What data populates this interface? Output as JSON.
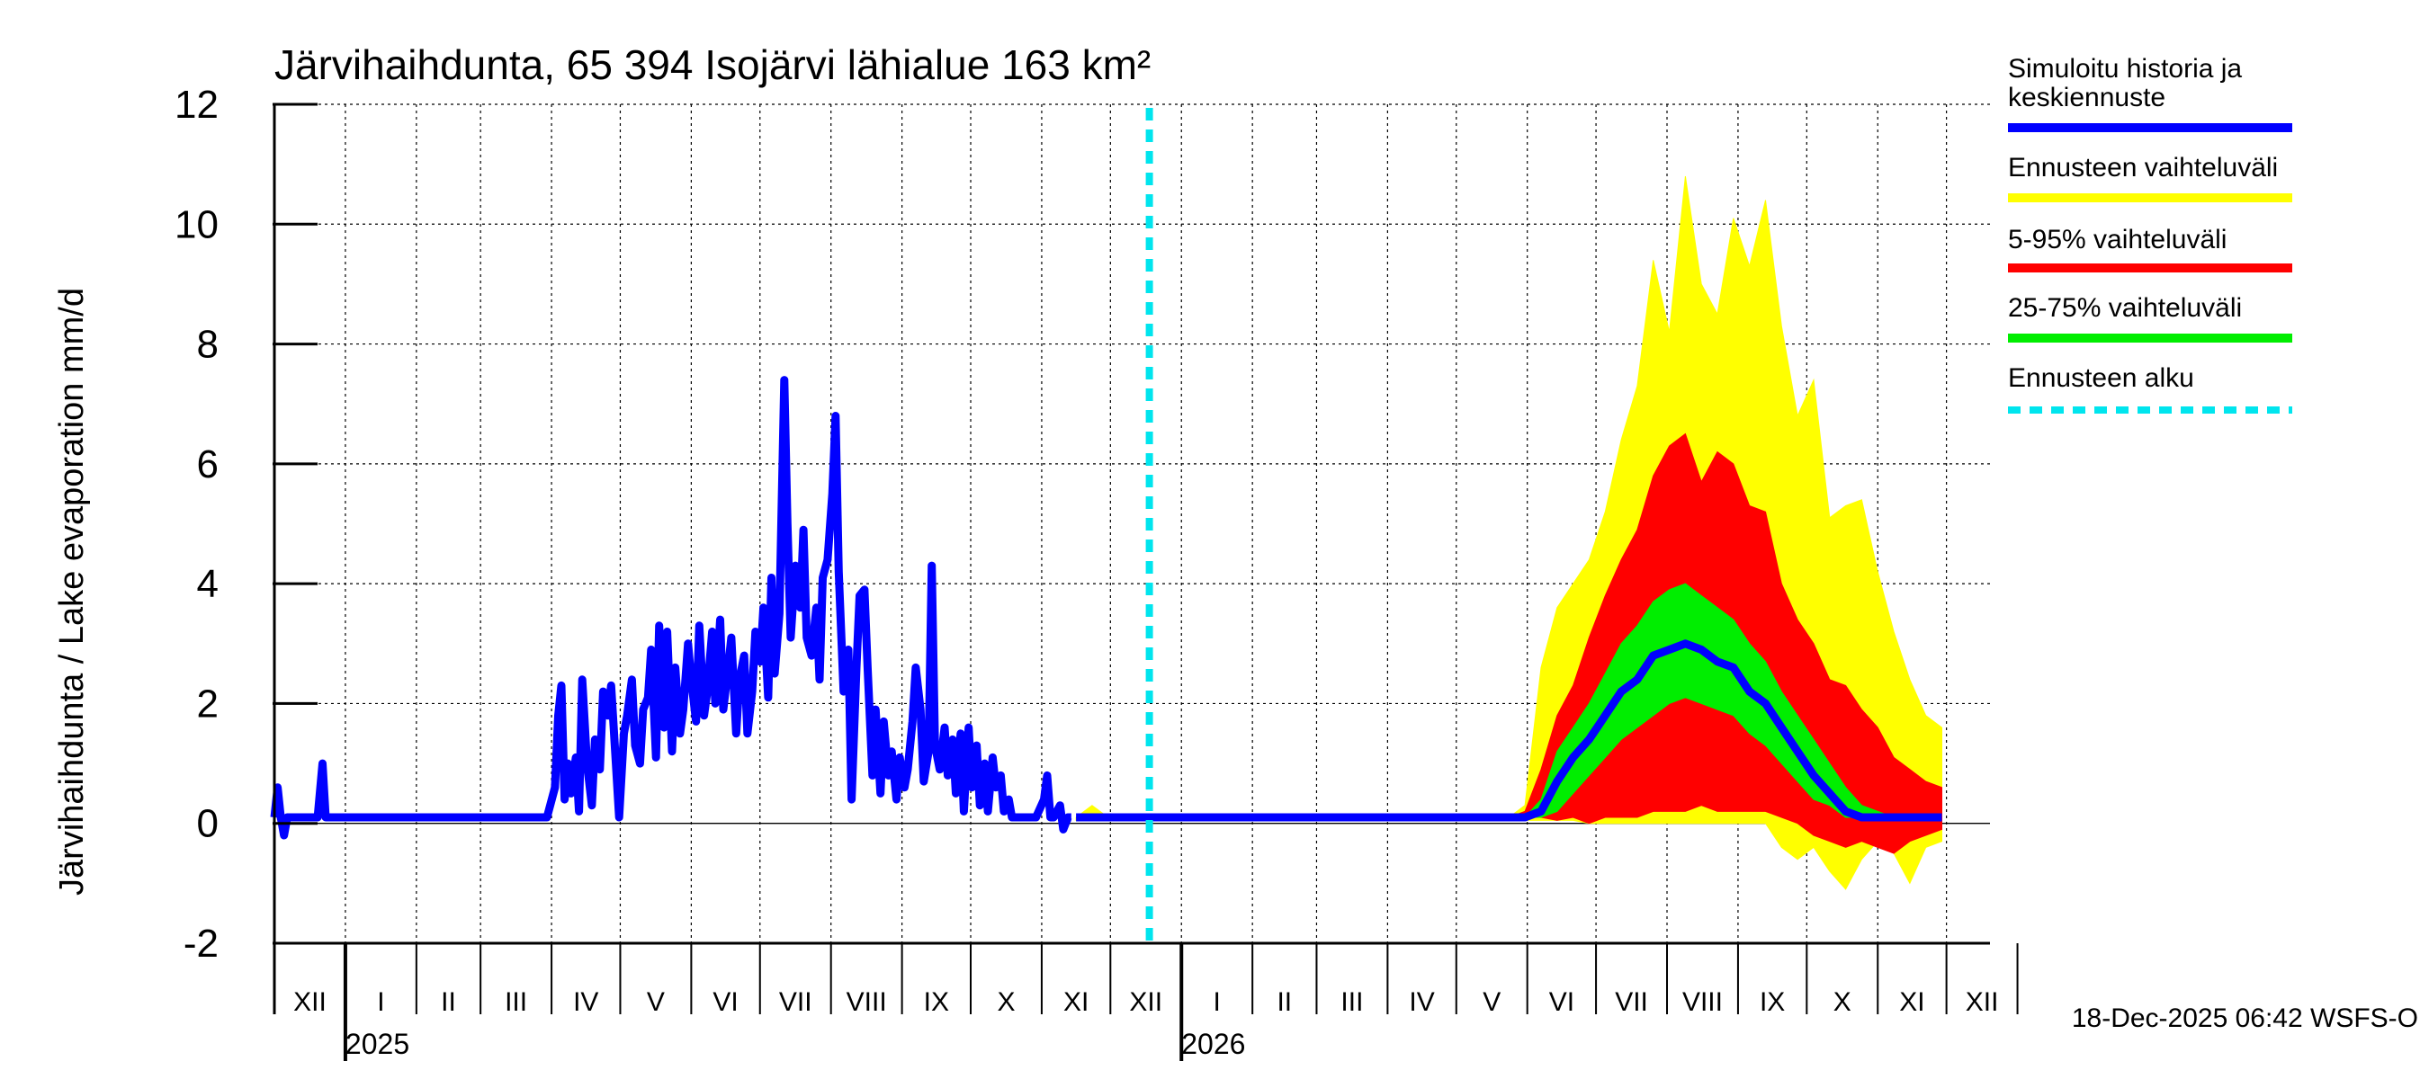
{
  "chart_data": {
    "type": "area",
    "title": "Järvihaihdunta, 65 394 Isojärvi lähialue 163 km²",
    "ylabel": "Järvihaihdunta / Lake evaporation   mm/d",
    "ylim": [
      -2,
      12
    ],
    "yticks": [
      -2,
      0,
      2,
      4,
      6,
      8,
      10,
      12
    ],
    "grid": true,
    "x_axis": {
      "start": "2024-12-01",
      "end": "2026-12-31",
      "month_labels": [
        "XII",
        "I",
        "II",
        "III",
        "IV",
        "V",
        "VI",
        "VII",
        "VIII",
        "IX",
        "X",
        "XI",
        "XII",
        "I",
        "II",
        "III",
        "IV",
        "V",
        "VI",
        "VII",
        "VIII",
        "IX",
        "X",
        "XI",
        "XII"
      ],
      "year_labels": [
        {
          "label": "2025",
          "month_index": 1
        },
        {
          "label": "2026",
          "month_index": 13
        }
      ]
    },
    "forecast_start": "2025-12-18",
    "legend": [
      {
        "label": "Simuloitu historia ja keskiennuste",
        "line1": "Simuloitu historia ja",
        "line2": "keskiennuste",
        "color": "#0000ff",
        "style": "solid"
      },
      {
        "label": "Ennusteen vaihteluväli",
        "color": "#ffff00",
        "style": "solid"
      },
      {
        "label": "5-95% vaihteluväli",
        "color": "#ff0000",
        "style": "solid"
      },
      {
        "label": "25-75% vaihteluväli",
        "color": "#00ee00",
        "style": "solid"
      },
      {
        "label": "Ennusteen alku",
        "color": "#00e5ee",
        "style": "dashed"
      }
    ],
    "history_series": {
      "name": "Simuloitu historia",
      "color": "#0000ff",
      "points": [
        [
          0.0,
          0.1
        ],
        [
          0.2,
          0.6
        ],
        [
          0.4,
          0.1
        ],
        [
          0.6,
          -0.2
        ],
        [
          0.8,
          0.1
        ],
        [
          1.0,
          0.1
        ],
        [
          2.0,
          0.1
        ],
        [
          2.7,
          0.1
        ],
        [
          3.0,
          1.0
        ],
        [
          3.2,
          0.1
        ],
        [
          3.5,
          0.1
        ],
        [
          4.5,
          0.1
        ],
        [
          5.5,
          0.1
        ],
        [
          6.5,
          0.1
        ],
        [
          7.5,
          0.1
        ],
        [
          8.5,
          0.1
        ],
        [
          9.5,
          0.1
        ],
        [
          10.5,
          0.1
        ],
        [
          11.5,
          0.1
        ],
        [
          12.0,
          0.1
        ],
        [
          13.0,
          0.1
        ],
        [
          14.0,
          0.1
        ],
        [
          15.0,
          0.1
        ],
        [
          16.0,
          0.1
        ],
        [
          17.0,
          0.1
        ],
        [
          17.5,
          0.6
        ],
        [
          17.7,
          1.8
        ],
        [
          17.9,
          2.3
        ],
        [
          18.1,
          0.4
        ],
        [
          18.3,
          1.0
        ],
        [
          18.5,
          0.5
        ],
        [
          18.8,
          1.1
        ],
        [
          19.0,
          0.2
        ],
        [
          19.2,
          2.4
        ],
        [
          19.5,
          1.0
        ],
        [
          19.8,
          0.3
        ],
        [
          20.0,
          1.4
        ],
        [
          20.3,
          0.9
        ],
        [
          20.5,
          2.2
        ],
        [
          20.8,
          1.8
        ],
        [
          21.0,
          2.3
        ],
        [
          21.3,
          1.0
        ],
        [
          21.5,
          0.1
        ],
        [
          21.8,
          1.5
        ],
        [
          22.0,
          1.8
        ],
        [
          22.3,
          2.4
        ],
        [
          22.5,
          1.3
        ],
        [
          22.8,
          1.0
        ],
        [
          23.0,
          1.9
        ],
        [
          23.3,
          2.1
        ],
        [
          23.5,
          2.9
        ],
        [
          23.8,
          1.1
        ],
        [
          24.0,
          3.3
        ],
        [
          24.3,
          1.6
        ],
        [
          24.5,
          3.2
        ],
        [
          24.8,
          1.2
        ],
        [
          25.0,
          2.6
        ],
        [
          25.3,
          1.5
        ],
        [
          25.5,
          1.9
        ],
        [
          25.8,
          3.0
        ],
        [
          26.0,
          2.4
        ],
        [
          26.3,
          1.7
        ],
        [
          26.5,
          3.3
        ],
        [
          26.8,
          1.8
        ],
        [
          27.0,
          2.2
        ],
        [
          27.3,
          3.2
        ],
        [
          27.5,
          2.0
        ],
        [
          27.8,
          3.4
        ],
        [
          28.0,
          1.9
        ],
        [
          28.3,
          2.6
        ],
        [
          28.5,
          3.1
        ],
        [
          28.8,
          1.5
        ],
        [
          29.0,
          2.4
        ],
        [
          29.3,
          2.8
        ],
        [
          29.5,
          1.5
        ],
        [
          29.8,
          2.2
        ],
        [
          30.0,
          3.2
        ],
        [
          30.3,
          2.7
        ],
        [
          30.5,
          3.6
        ],
        [
          30.8,
          2.1
        ],
        [
          31.0,
          4.1
        ],
        [
          31.2,
          2.5
        ],
        [
          31.5,
          3.5
        ],
        [
          31.8,
          7.4
        ],
        [
          32.0,
          5.0
        ],
        [
          32.2,
          3.1
        ],
        [
          32.5,
          4.3
        ],
        [
          32.8,
          3.6
        ],
        [
          33.0,
          4.9
        ],
        [
          33.2,
          3.1
        ],
        [
          33.5,
          2.8
        ],
        [
          33.8,
          3.6
        ],
        [
          34.0,
          2.4
        ],
        [
          34.2,
          4.1
        ],
        [
          34.5,
          4.4
        ],
        [
          34.8,
          5.5
        ],
        [
          35.0,
          6.8
        ],
        [
          35.2,
          4.2
        ],
        [
          35.5,
          2.2
        ],
        [
          35.8,
          2.9
        ],
        [
          36.0,
          0.4
        ],
        [
          36.3,
          2.6
        ],
        [
          36.5,
          3.8
        ],
        [
          36.8,
          3.9
        ],
        [
          37.0,
          2.6
        ],
        [
          37.3,
          0.8
        ],
        [
          37.5,
          1.9
        ],
        [
          37.8,
          0.5
        ],
        [
          38.0,
          1.7
        ],
        [
          38.3,
          0.8
        ],
        [
          38.5,
          1.2
        ],
        [
          38.8,
          0.4
        ],
        [
          39.0,
          1.1
        ],
        [
          39.3,
          0.6
        ],
        [
          39.5,
          0.9
        ],
        [
          39.8,
          1.7
        ],
        [
          40.0,
          2.6
        ],
        [
          40.3,
          1.9
        ],
        [
          40.5,
          0.7
        ],
        [
          40.8,
          1.2
        ],
        [
          41.0,
          4.3
        ],
        [
          41.2,
          1.3
        ],
        [
          41.5,
          0.9
        ],
        [
          41.8,
          1.6
        ],
        [
          42.0,
          0.8
        ],
        [
          42.3,
          1.4
        ],
        [
          42.5,
          0.5
        ],
        [
          42.8,
          1.5
        ],
        [
          43.0,
          0.2
        ],
        [
          43.3,
          1.6
        ],
        [
          43.5,
          0.6
        ],
        [
          43.8,
          1.3
        ],
        [
          44.0,
          0.3
        ],
        [
          44.3,
          1.0
        ],
        [
          44.5,
          0.2
        ],
        [
          44.8,
          1.1
        ],
        [
          45.0,
          0.6
        ],
        [
          45.3,
          0.8
        ],
        [
          45.5,
          0.2
        ],
        [
          45.8,
          0.4
        ],
        [
          46.0,
          0.1
        ],
        [
          46.5,
          0.1
        ],
        [
          47.0,
          0.1
        ],
        [
          47.5,
          0.1
        ],
        [
          48.0,
          0.4
        ],
        [
          48.2,
          0.8
        ],
        [
          48.4,
          0.1
        ],
        [
          48.6,
          0.1
        ],
        [
          49.0,
          0.3
        ],
        [
          49.2,
          -0.1
        ],
        [
          49.5,
          0.1
        ],
        [
          49.7,
          0.1
        ]
      ]
    },
    "forecast_band_min_max": {
      "name": "Ennusteen vaihteluväli",
      "color": "#ffff00",
      "x": [
        50,
        51,
        52,
        53,
        54,
        55,
        56,
        57,
        58,
        59,
        60,
        61,
        62,
        63,
        64,
        65,
        66,
        67,
        68,
        69,
        70,
        71,
        72,
        73,
        74,
        75,
        76,
        77,
        78,
        79,
        80,
        81,
        82,
        83,
        84,
        85,
        86,
        87,
        88,
        89,
        90,
        91,
        92,
        93,
        94,
        95,
        96,
        97,
        98,
        99,
        100,
        101,
        102,
        103,
        104
      ],
      "lower": [
        0.05,
        0.05,
        0.05,
        0.05,
        0.05,
        0.05,
        0.05,
        0.05,
        0.05,
        0.05,
        0.05,
        0.05,
        0.05,
        0.05,
        0.05,
        0.05,
        0.05,
        0.05,
        0.05,
        0.05,
        0.05,
        0.05,
        0.05,
        0.05,
        0.05,
        0.05,
        0.05,
        0.05,
        0.05,
        0.05,
        0.05,
        0.05,
        0.0,
        0.0,
        0.0,
        0.0,
        0.0,
        0.0,
        0.0,
        0.0,
        0.0,
        0.0,
        0.0,
        0.0,
        -0.4,
        -0.6,
        -0.4,
        -0.8,
        -1.1,
        -0.6,
        -0.3,
        -0.5,
        -1.0,
        -0.4,
        -0.3
      ],
      "upper": [
        0.1,
        0.3,
        0.1,
        0.1,
        0.1,
        0.1,
        0.1,
        0.1,
        0.1,
        0.1,
        0.1,
        0.1,
        0.1,
        0.1,
        0.1,
        0.1,
        0.1,
        0.1,
        0.1,
        0.1,
        0.1,
        0.1,
        0.1,
        0.1,
        0.1,
        0.1,
        0.1,
        0.1,
        0.3,
        2.6,
        3.6,
        4.0,
        4.4,
        5.2,
        6.4,
        7.3,
        9.4,
        8.2,
        10.8,
        9.0,
        8.5,
        10.1,
        9.3,
        10.4,
        8.3,
        6.8,
        7.4,
        5.1,
        5.3,
        5.4,
        4.2,
        3.2,
        2.4,
        1.8,
        1.6
      ]
    },
    "forecast_band_5_95": {
      "name": "5-95% vaihteluväli",
      "color": "#ff0000",
      "x": [
        50,
        51,
        52,
        53,
        54,
        55,
        56,
        57,
        58,
        59,
        60,
        61,
        62,
        63,
        64,
        65,
        66,
        67,
        68,
        69,
        70,
        71,
        72,
        73,
        74,
        75,
        76,
        77,
        78,
        79,
        80,
        81,
        82,
        83,
        84,
        85,
        86,
        87,
        88,
        89,
        90,
        91,
        92,
        93,
        94,
        95,
        96,
        97,
        98,
        99,
        100,
        101,
        102,
        103,
        104
      ],
      "lower": [
        0.1,
        0.1,
        0.1,
        0.1,
        0.1,
        0.1,
        0.1,
        0.1,
        0.1,
        0.1,
        0.1,
        0.1,
        0.1,
        0.1,
        0.1,
        0.1,
        0.1,
        0.1,
        0.1,
        0.1,
        0.1,
        0.1,
        0.1,
        0.1,
        0.1,
        0.1,
        0.1,
        0.1,
        0.1,
        0.1,
        0.05,
        0.1,
        0.0,
        0.1,
        0.1,
        0.1,
        0.2,
        0.2,
        0.2,
        0.3,
        0.2,
        0.2,
        0.2,
        0.2,
        0.1,
        0.0,
        -0.2,
        -0.3,
        -0.4,
        -0.3,
        -0.4,
        -0.5,
        -0.3,
        -0.2,
        -0.1
      ],
      "upper": [
        0.1,
        0.1,
        0.1,
        0.1,
        0.1,
        0.1,
        0.1,
        0.1,
        0.1,
        0.1,
        0.1,
        0.1,
        0.1,
        0.1,
        0.1,
        0.1,
        0.1,
        0.1,
        0.1,
        0.1,
        0.1,
        0.1,
        0.1,
        0.1,
        0.1,
        0.1,
        0.1,
        0.1,
        0.2,
        0.9,
        1.8,
        2.3,
        3.1,
        3.8,
        4.4,
        4.9,
        5.8,
        6.3,
        6.5,
        5.7,
        6.2,
        6.0,
        5.3,
        5.2,
        4.0,
        3.4,
        3.0,
        2.4,
        2.3,
        1.9,
        1.6,
        1.1,
        0.9,
        0.7,
        0.6
      ]
    },
    "forecast_band_25_75": {
      "name": "25-75% vaihteluväli",
      "color": "#00ee00",
      "x": [
        50,
        51,
        52,
        53,
        54,
        55,
        56,
        57,
        58,
        59,
        60,
        61,
        62,
        63,
        64,
        65,
        66,
        67,
        68,
        69,
        70,
        71,
        72,
        73,
        74,
        75,
        76,
        77,
        78,
        79,
        80,
        81,
        82,
        83,
        84,
        85,
        86,
        87,
        88,
        89,
        90,
        91,
        92,
        93,
        94,
        95,
        96,
        97,
        98,
        99,
        100,
        101,
        102,
        103,
        104
      ],
      "lower": [
        0.1,
        0.1,
        0.1,
        0.1,
        0.1,
        0.1,
        0.1,
        0.1,
        0.1,
        0.1,
        0.1,
        0.1,
        0.1,
        0.1,
        0.1,
        0.1,
        0.1,
        0.1,
        0.1,
        0.1,
        0.1,
        0.1,
        0.1,
        0.1,
        0.1,
        0.1,
        0.1,
        0.1,
        0.1,
        0.1,
        0.2,
        0.5,
        0.8,
        1.1,
        1.4,
        1.6,
        1.8,
        2.0,
        2.1,
        2.0,
        1.9,
        1.8,
        1.5,
        1.3,
        1.0,
        0.7,
        0.4,
        0.3,
        0.1,
        0.1,
        0.1,
        0.1,
        0.1,
        0.1,
        0.1
      ],
      "upper": [
        0.1,
        0.1,
        0.1,
        0.1,
        0.1,
        0.1,
        0.1,
        0.1,
        0.1,
        0.1,
        0.1,
        0.1,
        0.1,
        0.1,
        0.1,
        0.1,
        0.1,
        0.1,
        0.1,
        0.1,
        0.1,
        0.1,
        0.1,
        0.1,
        0.1,
        0.1,
        0.1,
        0.1,
        0.1,
        0.4,
        1.2,
        1.6,
        2.0,
        2.5,
        3.0,
        3.3,
        3.7,
        3.9,
        4.0,
        3.8,
        3.6,
        3.4,
        3.0,
        2.7,
        2.2,
        1.8,
        1.4,
        1.0,
        0.6,
        0.3,
        0.2,
        0.1,
        0.1,
        0.1,
        0.1
      ]
    },
    "forecast_median": {
      "name": "Keskiennuste",
      "color": "#0000ff",
      "x": [
        50,
        51,
        52,
        53,
        54,
        55,
        56,
        57,
        58,
        59,
        60,
        61,
        62,
        63,
        64,
        65,
        66,
        67,
        68,
        69,
        70,
        71,
        72,
        73,
        74,
        75,
        76,
        77,
        78,
        79,
        80,
        81,
        82,
        83,
        84,
        85,
        86,
        87,
        88,
        89,
        90,
        91,
        92,
        93,
        94,
        95,
        96,
        97,
        98,
        99,
        100,
        101,
        102,
        103,
        104
      ],
      "values": [
        0.1,
        0.1,
        0.1,
        0.1,
        0.1,
        0.1,
        0.1,
        0.1,
        0.1,
        0.1,
        0.1,
        0.1,
        0.1,
        0.1,
        0.1,
        0.1,
        0.1,
        0.1,
        0.1,
        0.1,
        0.1,
        0.1,
        0.1,
        0.1,
        0.1,
        0.1,
        0.1,
        0.1,
        0.1,
        0.2,
        0.7,
        1.1,
        1.4,
        1.8,
        2.2,
        2.4,
        2.8,
        2.9,
        3.0,
        2.9,
        2.7,
        2.6,
        2.2,
        2.0,
        1.6,
        1.2,
        0.8,
        0.5,
        0.2,
        0.1,
        0.1,
        0.1,
        0.1,
        0.1,
        0.1
      ]
    }
  },
  "footer": {
    "timestamp": "18-Dec-2025 06:42 WSFS-O"
  }
}
